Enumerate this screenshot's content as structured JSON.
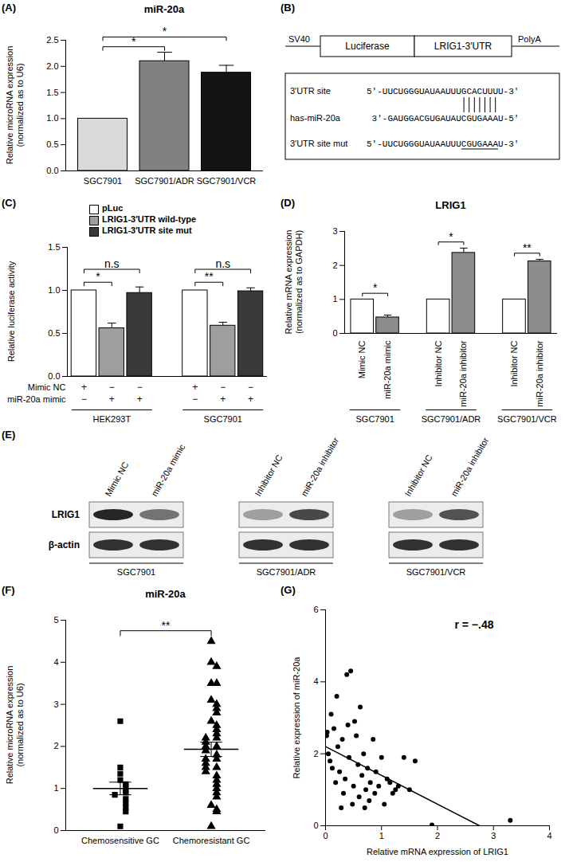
{
  "chart_data": [
    {
      "type": "bar",
      "panel_label": "(A)",
      "title": "miR-20a",
      "ylabel": "Relative microRNA expression\n(normalized as to U6)",
      "categories": [
        "SGC7901",
        "SGC7901/ADR",
        "SGC7901/VCR"
      ],
      "values": [
        1.0,
        2.1,
        1.88
      ],
      "errors": [
        0,
        0.17,
        0.14
      ],
      "colors": [
        "#d9d9d9",
        "#808080",
        "#141414"
      ],
      "comparisons": [
        {
          "from": "SGC7901",
          "to": "SGC7901/ADR",
          "text": "*"
        },
        {
          "from": "SGC7901",
          "to": "SGC7901/VCR",
          "text": "*"
        }
      ],
      "ylim": [
        0,
        2.5
      ],
      "yticks": [
        {
          "value": 0,
          "label": "0.0"
        },
        0.5,
        {
          "value": 1,
          "label": "1.0"
        },
        1.5,
        {
          "value": 2,
          "label": "2.0"
        },
        2.5
      ]
    },
    {
      "type": "diagram",
      "panel_label": "(B)",
      "construct": [
        "SV40",
        "Luciferase",
        "LRIG1-3′UTR",
        "PolyA"
      ],
      "sequences": [
        {
          "label": "3′UTR site",
          "sequence": "5′-UUCUGGGUAUAAUUUGCACUUUU-3′"
        },
        {
          "label": "has-miR-20a",
          "sequence": "3′-GAUGGACGUGAUAUCGUGAAAU-5′"
        },
        {
          "label": "3′UTR site mut",
          "sequence": "5′-UUCUGGGUAUAAUUUCGUGAAAU-3′"
        }
      ]
    },
    {
      "type": "bar",
      "panel_label": "(C)",
      "ylabel": "Relative luciferase activity",
      "categories": [
        "HEK293T",
        "SGC7901"
      ],
      "series": [
        {
          "name": "pLuc",
          "color": "#ffffff",
          "values": [
            1.0,
            1.0
          ],
          "errors": [
            0,
            0
          ]
        },
        {
          "name": "LRIG1-3′UTR wild-type",
          "color": "#9e9e9e",
          "values": [
            0.56,
            0.59
          ],
          "errors": [
            0.06,
            0.04
          ]
        },
        {
          "name": "LRIG1-3′UTR site mut",
          "color": "#3a3a3a",
          "values": [
            0.97,
            0.99
          ],
          "errors": [
            0.07,
            0.04
          ]
        }
      ],
      "conditions": [
        {
          "name": "Mimic NC",
          "signs": [
            "+",
            "−",
            "−"
          ]
        },
        {
          "name": "miR-20a mimic",
          "signs": [
            "−",
            "+",
            "+"
          ]
        }
      ],
      "comparisons": [
        {
          "from": "pLuc",
          "to": "LRIG1-3′UTR wild-type",
          "texts": [
            "*",
            "**"
          ]
        },
        {
          "from": "pLuc",
          "to": "LRIG1-3′UTR site mut",
          "texts": [
            "n.s",
            "n.s"
          ]
        }
      ],
      "legend": "top",
      "ylim": [
        0,
        1.5
      ],
      "yticks": [
        {
          "value": 0,
          "label": "0.0"
        },
        0.5,
        {
          "value": 1,
          "label": "1.0"
        },
        1.5
      ]
    },
    {
      "type": "bar",
      "panel_label": "(D)",
      "title": "LRIG1",
      "ylabel": "Relative mRNA expression\n(normalized as to GAPDH)",
      "categories": [
        "SGC7901",
        "SGC7901/ADR",
        "SGC7901/VCR"
      ],
      "bar_labels": [
        [
          "Mimic NC",
          "miR-20a mimic"
        ],
        [
          "Inhibitor NC",
          "miR-20a inhibitor"
        ],
        [
          "Inhibitor NC",
          "miR-20a inhibitor"
        ]
      ],
      "values": [
        [
          1.0,
          0.47
        ],
        [
          1.0,
          2.37
        ],
        [
          1.0,
          2.12
        ]
      ],
      "errors": [
        [
          0,
          0.07
        ],
        [
          0,
          0.14
        ],
        [
          0,
          0.06
        ]
      ],
      "colors": [
        "#ffffff",
        "#8c8c8c"
      ],
      "significance": [
        "*",
        "*",
        "**"
      ],
      "ylim": [
        0,
        3
      ],
      "yticks": [
        0,
        1,
        2,
        3
      ]
    },
    {
      "type": "western_blot",
      "panel_label": "(E)",
      "panels": [
        {
          "cell_line": "SGC7901",
          "lanes": [
            "Mimic NC",
            "miR-20a mimic"
          ]
        },
        {
          "cell_line": "SGC7901/ADR",
          "lanes": [
            "Inhibitor NC",
            "miR-20a inhibitor"
          ]
        },
        {
          "cell_line": "SGC7901/VCR",
          "lanes": [
            "Inhibitor NC",
            "miR-20a inhibitor"
          ]
        }
      ],
      "rows": [
        {
          "name": "LRIG1",
          "signal": [
            [
              0.9,
              0.55
            ],
            [
              0.35,
              0.75
            ],
            [
              0.35,
              0.7
            ]
          ]
        },
        {
          "name": "β-actin",
          "signal": [
            [
              0.85,
              0.85
            ],
            [
              0.85,
              0.85
            ],
            [
              0.85,
              0.85
            ]
          ]
        }
      ]
    },
    {
      "type": "dot",
      "panel_label": "(F)",
      "title": "miR-20a",
      "ylabel": "Relative microRNA expression\n(normalized as to U6)",
      "color": "#000000",
      "groups": [
        {
          "name": "Chemosensitive GC",
          "marker": "square",
          "mean": 1.0,
          "sem": 0.15,
          "values": [
            2.6,
            1.5,
            1.35,
            1.2,
            1.1,
            1.05,
            0.95,
            0.9,
            0.85,
            0.75,
            0.65,
            0.55,
            0.45,
            0.1
          ]
        },
        {
          "name": "Chemoresistant GC",
          "marker": "triangle",
          "mean": 1.93,
          "sem": 0.17,
          "values": [
            4.5,
            4.0,
            3.9,
            3.5,
            3.5,
            3.1,
            3.0,
            2.9,
            2.8,
            2.6,
            2.5,
            2.4,
            2.3,
            2.2,
            2.2,
            2.1,
            2.0,
            2.0,
            1.9,
            1.8,
            1.7,
            1.7,
            1.6,
            1.5,
            1.5,
            1.4,
            1.3,
            1.2,
            1.1,
            1.0,
            0.9,
            0.8,
            0.6,
            0.5,
            0.45,
            0.1
          ]
        }
      ],
      "comparisons": [
        {
          "from": "Chemosensitive GC",
          "to": "Chemoresistant GC",
          "text": "**"
        }
      ],
      "ylim": [
        0,
        5
      ],
      "yticks": [
        0,
        1,
        2,
        3,
        4,
        5
      ]
    },
    {
      "type": "scatter",
      "panel_label": "(G)",
      "xlabel": "Relative mRNA expression of LRIG1",
      "ylabel": "Relative expression of miR-20a",
      "annotation": "r = −.48",
      "x": [
        0.02,
        0.05,
        0.03,
        0.08,
        0.1,
        0.12,
        0.15,
        0.18,
        0.2,
        0.22,
        0.25,
        0.28,
        0.3,
        0.32,
        0.35,
        0.38,
        0.4,
        0.42,
        0.45,
        0.48,
        0.5,
        0.52,
        0.55,
        0.58,
        0.6,
        0.62,
        0.65,
        0.68,
        0.7,
        0.72,
        0.75,
        0.78,
        0.8,
        0.85,
        0.88,
        0.9,
        0.95,
        1.0,
        1.05,
        1.1,
        1.15,
        1.2,
        1.25,
        1.3,
        1.4,
        1.5,
        1.6,
        1.9,
        3.3
      ],
      "y": [
        2.5,
        2.0,
        2.6,
        1.8,
        3.1,
        1.6,
        2.7,
        1.2,
        3.6,
        2.2,
        1.5,
        0.5,
        2.4,
        0.9,
        1.3,
        4.2,
        2.8,
        1.9,
        4.3,
        0.6,
        1.1,
        2.9,
        2.5,
        1.7,
        0.8,
        3.3,
        1.4,
        2.0,
        0.5,
        1.0,
        1.6,
        0.7,
        1.2,
        2.4,
        0.9,
        1.5,
        1.1,
        1.9,
        0.6,
        1.3,
        1.2,
        0.9,
        1.0,
        1.1,
        1.9,
        1.0,
        1.8,
        0.02,
        0.15
      ],
      "trend_line": {
        "x": [
          0,
          2.75
        ],
        "y": [
          2.2,
          0
        ]
      },
      "color": "#000000",
      "xlim": [
        0,
        4
      ],
      "xticks": [
        0,
        1,
        2,
        3,
        4
      ],
      "ylim": [
        0,
        6
      ],
      "yticks": [
        0,
        2,
        4,
        6
      ]
    }
  ]
}
